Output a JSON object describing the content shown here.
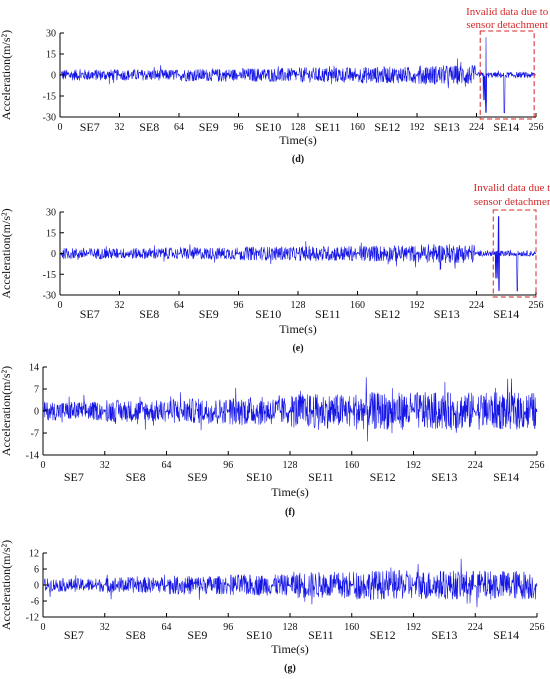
{
  "chart_data": [
    {
      "type": "line",
      "panel": "d",
      "caption": "(d)",
      "xlabel": "Time(s)",
      "ylabel": "Acceleration(m/s²)",
      "xlim": [
        0,
        256
      ],
      "ylim": [
        -30,
        30
      ],
      "x_ticks": [
        0,
        32,
        64,
        96,
        128,
        160,
        192,
        224,
        256
      ],
      "x_tick_labels": [
        "0",
        "32",
        "64",
        "96",
        "128",
        "160",
        "192",
        "224",
        "256"
      ],
      "y_ticks": [
        -30,
        -15,
        0,
        15,
        30
      ],
      "y_tick_labels": [
        "-30",
        "-15",
        "0",
        "15",
        "30"
      ],
      "segments": [
        "SE7",
        "SE8",
        "SE9",
        "SE10",
        "SE11",
        "SE12",
        "SE13",
        "SE14"
      ],
      "series": [
        {
          "color": "#1414e6",
          "segment_amplitude": [
            4,
            4,
            4.5,
            5,
            5.5,
            6,
            7,
            2
          ]
        }
      ],
      "annotation": {
        "text_line1": "Invalid data due to",
        "text_line2": "sensor detachment",
        "x_range": [
          226,
          255
        ],
        "color": "#d62728"
      }
    },
    {
      "type": "line",
      "panel": "e",
      "caption": "(e)",
      "xlabel": "Time(s)",
      "ylabel": "Acceleration(m/s²)",
      "xlim": [
        0,
        256
      ],
      "ylim": [
        -30,
        30
      ],
      "x_ticks": [
        0,
        32,
        64,
        96,
        128,
        160,
        192,
        224,
        256
      ],
      "x_tick_labels": [
        "0",
        "32",
        "64",
        "96",
        "128",
        "160",
        "192",
        "224",
        "256"
      ],
      "y_ticks": [
        -30,
        -15,
        0,
        15,
        30
      ],
      "y_tick_labels": [
        "-30",
        "-15",
        "0",
        "15",
        "30"
      ],
      "segments": [
        "SE7",
        "SE8",
        "SE9",
        "SE10",
        "SE11",
        "SE12",
        "SE13",
        "SE14"
      ],
      "series": [
        {
          "color": "#1414e6",
          "segment_amplitude": [
            4,
            4,
            4.5,
            5,
            5.5,
            6,
            7,
            2
          ]
        }
      ],
      "annotation": {
        "text_line1": "Invalid data due to",
        "text_line2": "sensor detachment",
        "x_range": [
          233,
          256
        ],
        "color": "#d62728"
      }
    },
    {
      "type": "line",
      "panel": "f",
      "caption": "(f)",
      "xlabel": "Time(s)",
      "ylabel": "Acceleration(m/s²)",
      "xlim": [
        0,
        256
      ],
      "ylim": [
        -14,
        14
      ],
      "x_ticks": [
        0,
        32,
        64,
        96,
        128,
        160,
        192,
        224,
        256
      ],
      "x_tick_labels": [
        "0",
        "32",
        "64",
        "96",
        "128",
        "160",
        "192",
        "224",
        "256"
      ],
      "y_ticks": [
        -14,
        -7,
        0,
        7,
        14
      ],
      "y_tick_labels": [
        "-14",
        "-7",
        "0",
        "7",
        "14"
      ],
      "segments": [
        "SE7",
        "SE8",
        "SE9",
        "SE10",
        "SE11",
        "SE12",
        "SE13",
        "SE14"
      ],
      "series": [
        {
          "color": "#1414e6",
          "segment_amplitude": [
            3,
            3.5,
            4,
            4.5,
            5.5,
            6,
            6,
            6
          ]
        }
      ]
    },
    {
      "type": "line",
      "panel": "g",
      "caption": "(g)",
      "xlabel": "Time(s)",
      "ylabel": "Acceleration(m/s²)",
      "xlim": [
        0,
        256
      ],
      "ylim": [
        -12,
        12
      ],
      "x_ticks": [
        0,
        32,
        64,
        96,
        128,
        160,
        192,
        224,
        256
      ],
      "x_tick_labels": [
        "0",
        "32",
        "64",
        "96",
        "128",
        "160",
        "192",
        "224",
        "256"
      ],
      "y_ticks": [
        -12,
        -6,
        0,
        6,
        12
      ],
      "y_tick_labels": [
        "-12",
        "-6",
        "0",
        "6",
        "12"
      ],
      "segments": [
        "SE7",
        "SE8",
        "SE9",
        "SE10",
        "SE11",
        "SE12",
        "SE13",
        "SE14"
      ],
      "series": [
        {
          "color": "#1414e6",
          "segment_amplitude": [
            2.5,
            3,
            3.5,
            4,
            5,
            5.5,
            5.5,
            5.5
          ]
        }
      ]
    }
  ]
}
